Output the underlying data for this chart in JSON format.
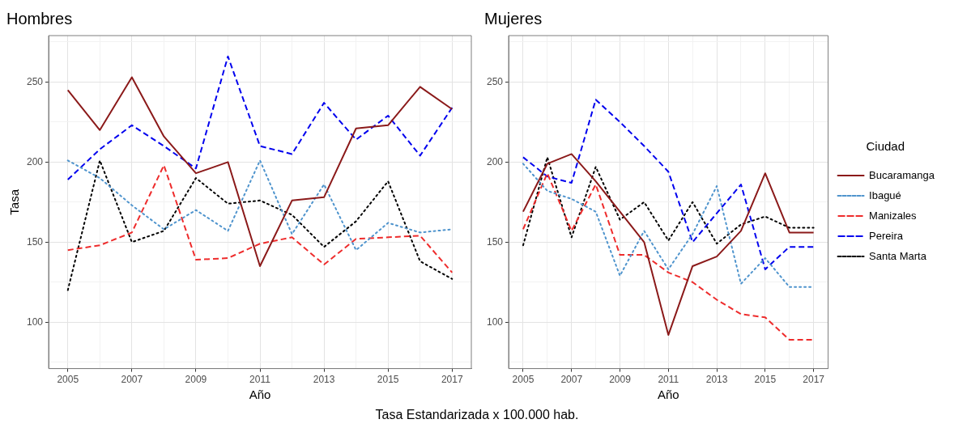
{
  "chart_data": [
    {
      "type": "line",
      "title": "Hombres",
      "xlabel": "Año",
      "ylabel": "Tasa",
      "x": [
        2005,
        2006,
        2007,
        2008,
        2009,
        2010,
        2011,
        2012,
        2013,
        2014,
        2015,
        2016,
        2017
      ],
      "xlim": [
        2004.4,
        2017.6
      ],
      "xticks": [
        2005,
        {
          "value": 2006,
          "label": null
        },
        2007,
        {
          "value": 2008,
          "label": null
        },
        2009,
        {
          "value": 2010,
          "label": null
        },
        2011,
        {
          "value": 2012,
          "label": null
        },
        2013,
        {
          "value": 2014,
          "label": null
        },
        2015,
        {
          "value": 2016,
          "label": null
        },
        2017
      ],
      "ylim": [
        71,
        279
      ],
      "yticks": [
        {
          "value": 75,
          "label": null
        },
        100,
        {
          "value": 125,
          "label": null
        },
        150,
        {
          "value": 175,
          "label": null
        },
        200,
        {
          "value": 225,
          "label": null
        },
        250,
        {
          "value": 275,
          "label": null
        }
      ],
      "grid": true,
      "legend": false,
      "annotations": [
        "Tasa Estandarizada x 100.000 hab."
      ],
      "series": [
        {
          "color": "#8b1a1a",
          "line_style": "solid",
          "values": [
            245,
            220,
            253,
            216,
            193,
            200,
            135,
            176,
            178,
            221,
            223,
            247,
            233
          ]
        },
        {
          "color": "#4f94cd",
          "line_style": "dotted",
          "values": [
            201,
            190,
            173,
            158,
            170,
            157,
            201,
            155,
            186,
            145,
            162,
            156,
            158
          ]
        },
        {
          "color": "#ee2c2c",
          "line_style": "dashed",
          "values": [
            145,
            148,
            156,
            198,
            139,
            140,
            149,
            153,
            136,
            152,
            153,
            154,
            131
          ]
        },
        {
          "color": "#0000ee",
          "line_style": "dashed",
          "values": [
            189,
            208,
            223,
            210,
            196,
            266,
            210,
            205,
            237,
            214,
            229,
            204,
            234
          ]
        },
        {
          "color": "#000000",
          "line_style": "dotted",
          "values": [
            120,
            201,
            150,
            157,
            190,
            174,
            176,
            167,
            147,
            163,
            188,
            138,
            127
          ]
        }
      ]
    },
    {
      "type": "line",
      "title": "Mujeres",
      "xlabel": "Año",
      "legend_title": "Ciudad",
      "x": [
        2005,
        2006,
        2007,
        2008,
        2009,
        2010,
        2011,
        2012,
        2013,
        2014,
        2015,
        2016,
        2017
      ],
      "xlim": [
        2004.4,
        2017.6
      ],
      "xticks": [
        2005,
        {
          "value": 2006,
          "label": null
        },
        2007,
        {
          "value": 2008,
          "label": null
        },
        2009,
        {
          "value": 2010,
          "label": null
        },
        2011,
        {
          "value": 2012,
          "label": null
        },
        2013,
        {
          "value": 2014,
          "label": null
        },
        2015,
        {
          "value": 2016,
          "label": null
        },
        2017
      ],
      "ylim": [
        71,
        279
      ],
      "yticks": [
        {
          "value": 75,
          "label": null
        },
        100,
        {
          "value": 125,
          "label": null
        },
        150,
        {
          "value": 175,
          "label": null
        },
        200,
        {
          "value": 225,
          "label": null
        },
        250,
        {
          "value": 275,
          "label": null
        }
      ],
      "grid": true,
      "legend": "right",
      "series": [
        {
          "name": "Bucaramanga",
          "color": "#8b1a1a",
          "line_style": "solid",
          "values": [
            169,
            199,
            205,
            188,
            169,
            150,
            92,
            135,
            141,
            157,
            193,
            156,
            156
          ]
        },
        {
          "name": "Ibagué",
          "color": "#4f94cd",
          "line_style": "dotted",
          "values": [
            199,
            182,
            177,
            169,
            129,
            157,
            133,
            155,
            185,
            124,
            140,
            122,
            122
          ]
        },
        {
          "name": "Manizales",
          "color": "#ee2c2c",
          "line_style": "dashed",
          "values": [
            158,
            193,
            157,
            186,
            142,
            142,
            131,
            125,
            114,
            105,
            103,
            89,
            89
          ]
        },
        {
          "name": "Pereira",
          "color": "#0000ee",
          "line_style": "dashed",
          "values": [
            203,
            191,
            187,
            239,
            225,
            210,
            194,
            150,
            168,
            186,
            133,
            147,
            147
          ]
        },
        {
          "name": "Santa Marta",
          "color": "#000000",
          "line_style": "dotted",
          "values": [
            148,
            203,
            153,
            197,
            164,
            175,
            151,
            175,
            149,
            161,
            166,
            159,
            159
          ]
        }
      ]
    }
  ]
}
